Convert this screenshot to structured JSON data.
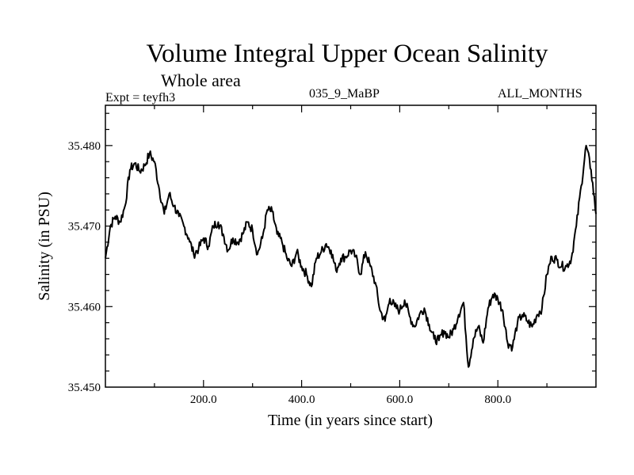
{
  "header": {
    "title": "Volume Integral Upper Ocean Salinity",
    "subtitle": "Whole area",
    "expt": "Expt = teyfh3",
    "run_id": "035_9_MaBP",
    "months": "ALL_MONTHS"
  },
  "colors": {
    "line": "#000000",
    "frame": "#000000",
    "background": "#ffffff"
  },
  "chart_data": {
    "type": "line",
    "title": "Volume Integral Upper Ocean Salinity",
    "xlabel": "Time (in years since start)",
    "ylabel": "Salinity (in PSU)",
    "xlim": [
      0,
      1000
    ],
    "ylim": [
      35.45,
      35.485
    ],
    "xticks": [
      200,
      400,
      600,
      800
    ],
    "xtick_labels": [
      "200.0",
      "400.0",
      "600.0",
      "800.0"
    ],
    "yticks": [
      35.45,
      35.46,
      35.47,
      35.48
    ],
    "ytick_labels": [
      "35.450",
      "35.460",
      "35.470",
      "35.480"
    ],
    "grid": false,
    "series": [
      {
        "name": "salinity",
        "x": [
          0,
          10,
          20,
          30,
          40,
          50,
          60,
          70,
          80,
          90,
          100,
          110,
          120,
          130,
          140,
          150,
          160,
          170,
          180,
          190,
          200,
          210,
          220,
          230,
          240,
          250,
          260,
          270,
          280,
          290,
          300,
          310,
          320,
          330,
          340,
          350,
          360,
          370,
          380,
          390,
          400,
          410,
          420,
          430,
          440,
          450,
          460,
          470,
          480,
          490,
          500,
          510,
          520,
          530,
          540,
          550,
          560,
          570,
          580,
          590,
          600,
          610,
          620,
          630,
          640,
          650,
          660,
          670,
          680,
          690,
          700,
          710,
          720,
          730,
          740,
          750,
          760,
          770,
          780,
          790,
          800,
          810,
          820,
          830,
          840,
          850,
          860,
          870,
          880,
          890,
          900,
          910,
          920,
          930,
          940,
          950,
          960,
          970,
          980,
          990,
          1000
        ],
        "values": [
          35.466,
          35.47,
          35.4712,
          35.4705,
          35.4725,
          35.477,
          35.4778,
          35.4768,
          35.4775,
          35.479,
          35.478,
          35.4745,
          35.4715,
          35.474,
          35.4725,
          35.4712,
          35.47,
          35.4685,
          35.4665,
          35.4672,
          35.4685,
          35.4675,
          35.47,
          35.4705,
          35.469,
          35.467,
          35.4685,
          35.468,
          35.469,
          35.4705,
          35.4695,
          35.4665,
          35.4685,
          35.472,
          35.4718,
          35.469,
          35.468,
          35.466,
          35.465,
          35.4668,
          35.465,
          35.464,
          35.4625,
          35.466,
          35.4668,
          35.4678,
          35.467,
          35.4645,
          35.466,
          35.4662,
          35.467,
          35.4662,
          35.464,
          35.4668,
          35.465,
          35.463,
          35.4595,
          35.4582,
          35.461,
          35.46,
          35.4595,
          35.4608,
          35.4588,
          35.4575,
          35.459,
          35.4598,
          35.4578,
          35.456,
          35.4558,
          35.457,
          35.4562,
          35.4572,
          35.459,
          35.4605,
          35.4525,
          35.456,
          35.4575,
          35.4555,
          35.4598,
          35.4615,
          35.461,
          35.4595,
          35.4555,
          35.455,
          35.458,
          35.459,
          35.4582,
          35.4575,
          35.459,
          35.4598,
          35.464,
          35.4662,
          35.4658,
          35.465,
          35.465,
          35.466,
          35.47,
          35.475,
          35.48,
          35.477,
          35.4715
        ]
      }
    ]
  }
}
